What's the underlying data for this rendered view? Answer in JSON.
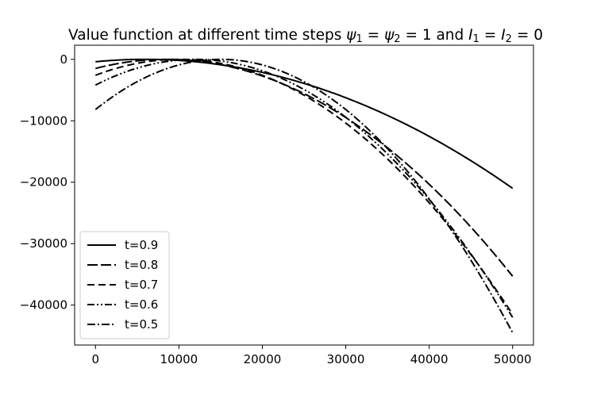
{
  "chart_data": {
    "type": "line",
    "title": "Value function at different time steps ψ₁ = ψ₂ = 1 and I₁ = I₂ = 0",
    "title_parts": [
      {
        "t": "Value function at different time steps ",
        "style": "normal"
      },
      {
        "t": "ψ",
        "style": "italic"
      },
      {
        "t": "1",
        "style": "sub"
      },
      {
        "t": " = ",
        "style": "normal"
      },
      {
        "t": "ψ",
        "style": "italic"
      },
      {
        "t": "2",
        "style": "sub"
      },
      {
        "t": " = 1 and ",
        "style": "normal"
      },
      {
        "t": "I",
        "style": "italic"
      },
      {
        "t": "1",
        "style": "sub"
      },
      {
        "t": " = ",
        "style": "normal"
      },
      {
        "t": "I",
        "style": "italic"
      },
      {
        "t": "2",
        "style": "sub"
      },
      {
        "t": " = 0",
        "style": "normal"
      }
    ],
    "xlabel": "",
    "ylabel": "",
    "xlim": [
      -2500,
      52500
    ],
    "ylim": [
      -46500,
      2300
    ],
    "xticks": [
      0,
      10000,
      20000,
      30000,
      40000,
      50000
    ],
    "xtick_labels": [
      "0",
      "10000",
      "20000",
      "30000",
      "40000",
      "50000"
    ],
    "yticks": [
      0,
      -10000,
      -20000,
      -30000,
      -40000
    ],
    "ytick_labels": [
      "0",
      "−10000",
      "−20000",
      "−30000",
      "−40000"
    ],
    "grid": false,
    "legend_position": "lower-left",
    "series": [
      {
        "name": "t=0.9",
        "dash": "solid",
        "vertex_x": 6000,
        "vertex_y": 0,
        "x": [
          0,
          50000
        ],
        "y": [
          -300,
          -21000
        ]
      },
      {
        "name": "t=0.8",
        "dash": "long-dash",
        "vertex_x": 8500,
        "vertex_y": 0,
        "x": [
          0,
          50000
        ],
        "y": [
          -1200,
          -35300
        ]
      },
      {
        "name": "t=0.7",
        "dash": "dash",
        "vertex_x": 10000,
        "vertex_y": 0,
        "x": [
          0,
          50000
        ],
        "y": [
          -2000,
          -41500
        ]
      },
      {
        "name": "t=0.6",
        "dash": "dash-dot-dot",
        "vertex_x": 12000,
        "vertex_y": 0,
        "x": [
          0,
          50000
        ],
        "y": [
          -4000,
          -42000
        ]
      },
      {
        "name": "t=0.5",
        "dash": "dash-dot",
        "vertex_x": 15000,
        "vertex_y": 0,
        "x": [
          0,
          50000
        ],
        "y": [
          -7500,
          -44500
        ]
      }
    ]
  }
}
